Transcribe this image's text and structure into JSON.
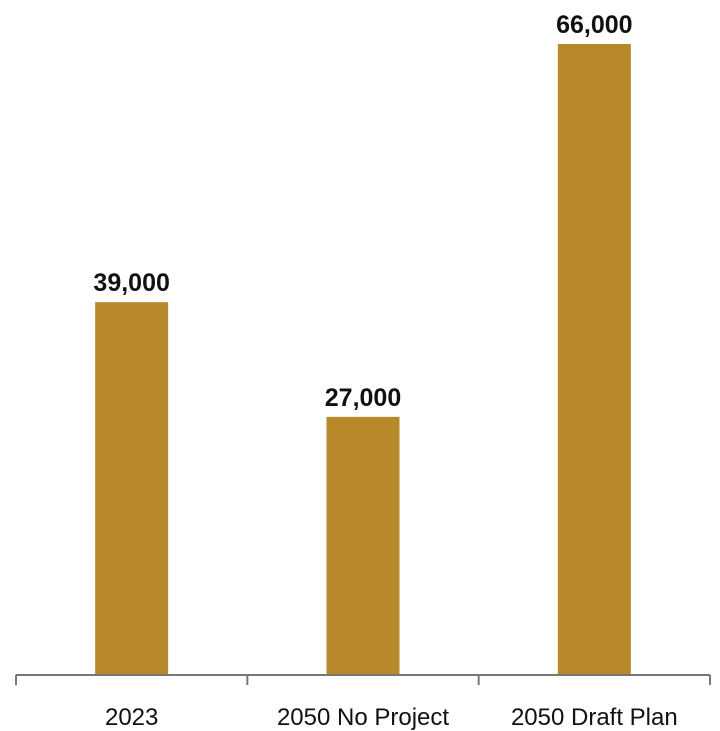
{
  "chart_data": {
    "type": "bar",
    "categories": [
      "2023",
      "2050 No Project",
      "2050 Draft Plan"
    ],
    "values": [
      39000,
      27000,
      66000
    ],
    "data_labels": [
      "39,000",
      "27,000",
      "66,000"
    ],
    "title": "",
    "xlabel": "",
    "ylabel": "",
    "ylim": [
      0,
      66000
    ],
    "grid": false,
    "legend": "none",
    "bar_color": "#b8892b",
    "axis_color": "#777777",
    "text_color": "#111111"
  }
}
